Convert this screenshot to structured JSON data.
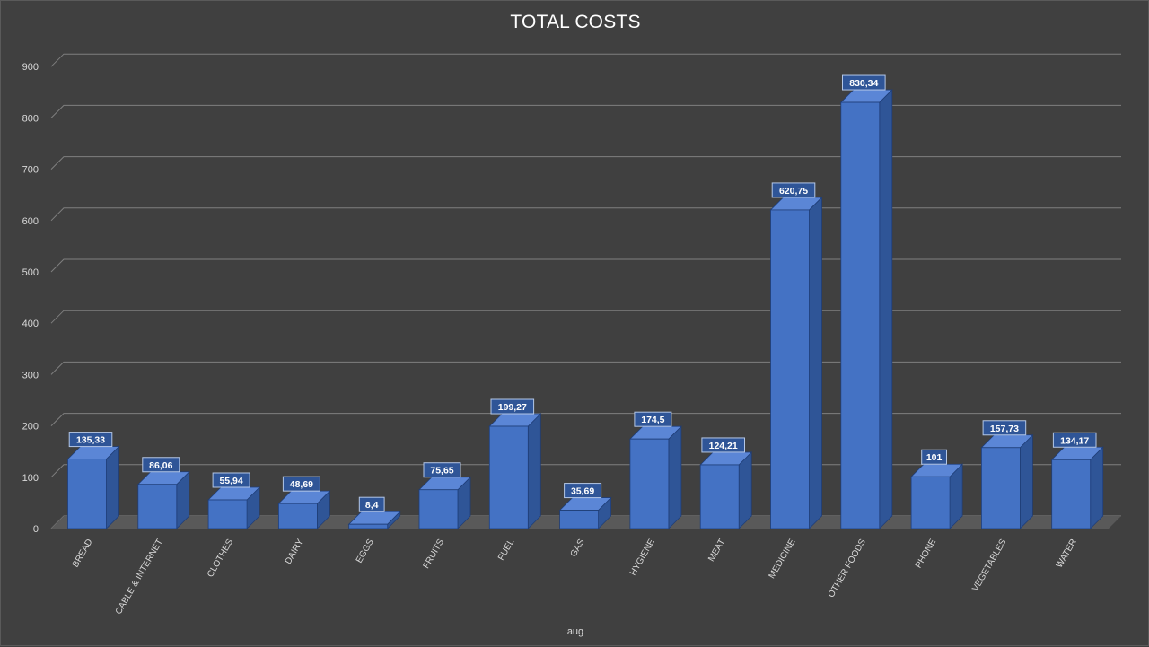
{
  "chart_data": {
    "type": "bar",
    "style": "3d-column",
    "title": "TOTAL COSTS",
    "xlabel": "aug",
    "ylabel": "",
    "ylim": [
      0,
      900
    ],
    "y_ticks": [
      "0",
      "100",
      "200",
      "300",
      "400",
      "500",
      "600",
      "700",
      "800",
      "900"
    ],
    "grid": true,
    "legend": "none",
    "categories": [
      "BREAD",
      "CABLE & INTERNET",
      "CLOTHES",
      "DAIRY",
      "EGGS",
      "FRUITS",
      "FUEL",
      "GAS",
      "HYGIENE",
      "MEAT",
      "MEDICINE",
      "OTHER FOODS",
      "PHONE",
      "VEGETABLES",
      "WATER"
    ],
    "values": [
      135.33,
      86.06,
      55.94,
      48.69,
      8.4,
      75.65,
      199.27,
      35.69,
      174.5,
      124.21,
      620.75,
      830.34,
      101,
      157.73,
      134.17
    ],
    "data_labels": [
      "135,33",
      "86,06",
      "55,94",
      "48,69",
      "8,4",
      "75,65",
      "199,27",
      "35,69",
      "174,5",
      "124,21",
      "620,75",
      "830,34",
      "101",
      "157,73",
      "134,17"
    ],
    "colors": {
      "background": "#404040",
      "bar_front": "#4472c4",
      "bar_side": "#2f5597",
      "bar_top": "#5b86d6",
      "gridline": "#7f7f7f",
      "floor": "#595959"
    }
  }
}
